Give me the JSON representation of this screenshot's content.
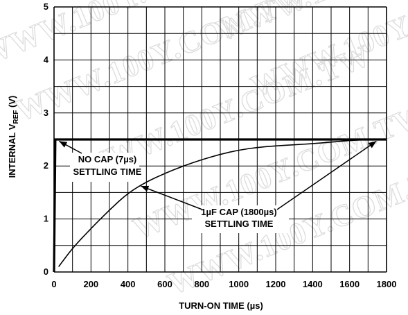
{
  "chart_data": {
    "type": "line",
    "xlabel": "TURN-ON TIME (µs)",
    "ylabel": {
      "prefix": "INTERNAL V",
      "subscript": "REF",
      "suffix": " (V)"
    },
    "xlim": [
      0,
      1800
    ],
    "ylim": [
      0,
      5
    ],
    "x_ticks": [
      "0",
      "200",
      "400",
      "600",
      "800",
      "1000",
      "1200",
      "1400",
      "1600",
      "1800"
    ],
    "y_ticks": [
      "0",
      "1",
      "2",
      "3",
      "4",
      "5"
    ],
    "grid": true,
    "series": [
      {
        "name": "NO CAP",
        "x": [
          0,
          7,
          1800
        ],
        "y": [
          0,
          2.5,
          2.5
        ]
      },
      {
        "name": "1µF CAP",
        "x": [
          25,
          100,
          200,
          300,
          400,
          500,
          600,
          700,
          800,
          900,
          1000,
          1100,
          1200,
          1300,
          1400,
          1500,
          1600,
          1700,
          1800
        ],
        "y": [
          0.1,
          0.45,
          0.82,
          1.17,
          1.49,
          1.7,
          1.86,
          2.0,
          2.12,
          2.22,
          2.3,
          2.35,
          2.38,
          2.4,
          2.42,
          2.45,
          2.48,
          2.5,
          2.5
        ]
      }
    ],
    "annotations": [
      {
        "lines": [
          "NO CAP (7µs)",
          "SETTLING TIME"
        ],
        "points_to": [
          {
            "x": 5,
            "y": 2.52
          }
        ]
      },
      {
        "lines": [
          "1µF CAP (1800µs)",
          "SETTLING TIME"
        ],
        "points_to": [
          {
            "x": 470,
            "y": 1.7
          },
          {
            "x": 1760,
            "y": 2.52
          }
        ]
      }
    ],
    "watermark": "WWW.100Y.COM.TW"
  },
  "colors": {
    "line": "#000000",
    "grid": "#000000",
    "watermark": "#dcdcdc",
    "background": "#ffffff"
  }
}
